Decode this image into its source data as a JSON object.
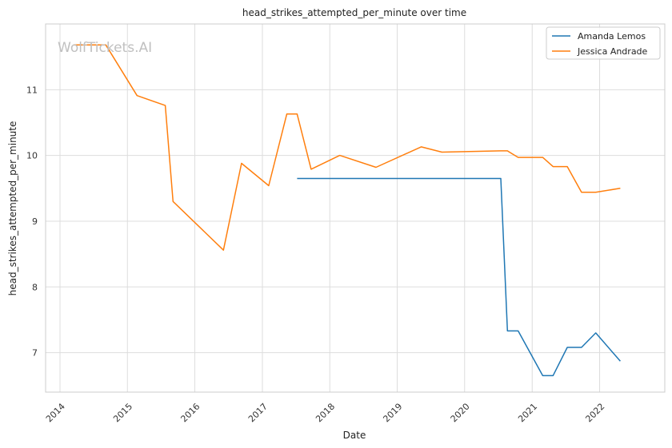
{
  "watermark": "WolfTickets.AI",
  "chart_data": {
    "type": "line",
    "title": "head_strikes_attempted_per_minute over time",
    "xlabel": "Date",
    "ylabel": "head_strikes_attempted_per_minute",
    "xlim": [
      "2013-10-15",
      "2022-12-20"
    ],
    "ylim": [
      6.4,
      12.0
    ],
    "x_ticks": [
      "2014",
      "2015",
      "2016",
      "2017",
      "2018",
      "2019",
      "2020",
      "2021",
      "2022"
    ],
    "y_ticks": [
      7,
      8,
      9,
      10,
      11
    ],
    "grid": true,
    "legend_position": "top-right",
    "series": [
      {
        "name": "Amanda Lemos",
        "color": "#1f77b4",
        "points": [
          {
            "x": "2017-07-08",
            "y": 9.65
          },
          {
            "x": "2020-07-15",
            "y": 9.65
          },
          {
            "x": "2020-08-20",
            "y": 7.33
          },
          {
            "x": "2020-10-17",
            "y": 7.33
          },
          {
            "x": "2021-02-27",
            "y": 6.65
          },
          {
            "x": "2021-04-24",
            "y": 6.65
          },
          {
            "x": "2021-07-10",
            "y": 7.08
          },
          {
            "x": "2021-09-25",
            "y": 7.08
          },
          {
            "x": "2021-12-11",
            "y": 7.3
          },
          {
            "x": "2022-04-23",
            "y": 6.87
          }
        ]
      },
      {
        "name": "Jessica Andrade",
        "color": "#ff7f0e",
        "points": [
          {
            "x": "2014-03-15",
            "y": 11.68
          },
          {
            "x": "2014-09-06",
            "y": 11.68
          },
          {
            "x": "2015-02-22",
            "y": 10.91
          },
          {
            "x": "2015-07-25",
            "y": 10.76
          },
          {
            "x": "2015-09-05",
            "y": 9.3
          },
          {
            "x": "2016-06-04",
            "y": 8.56
          },
          {
            "x": "2016-09-10",
            "y": 9.88
          },
          {
            "x": "2017-02-04",
            "y": 9.54
          },
          {
            "x": "2017-05-13",
            "y": 10.63
          },
          {
            "x": "2017-07-08",
            "y": 10.63
          },
          {
            "x": "2017-09-22",
            "y": 9.79
          },
          {
            "x": "2018-02-24",
            "y": 10.0
          },
          {
            "x": "2018-09-08",
            "y": 9.82
          },
          {
            "x": "2019-05-11",
            "y": 10.13
          },
          {
            "x": "2019-08-31",
            "y": 10.05
          },
          {
            "x": "2020-07-15",
            "y": 10.07
          },
          {
            "x": "2020-08-20",
            "y": 10.07
          },
          {
            "x": "2020-10-17",
            "y": 9.97
          },
          {
            "x": "2021-02-27",
            "y": 9.97
          },
          {
            "x": "2021-04-24",
            "y": 9.83
          },
          {
            "x": "2021-07-10",
            "y": 9.83
          },
          {
            "x": "2021-09-25",
            "y": 9.44
          },
          {
            "x": "2021-12-11",
            "y": 9.44
          },
          {
            "x": "2022-04-23",
            "y": 9.5
          }
        ]
      }
    ]
  }
}
